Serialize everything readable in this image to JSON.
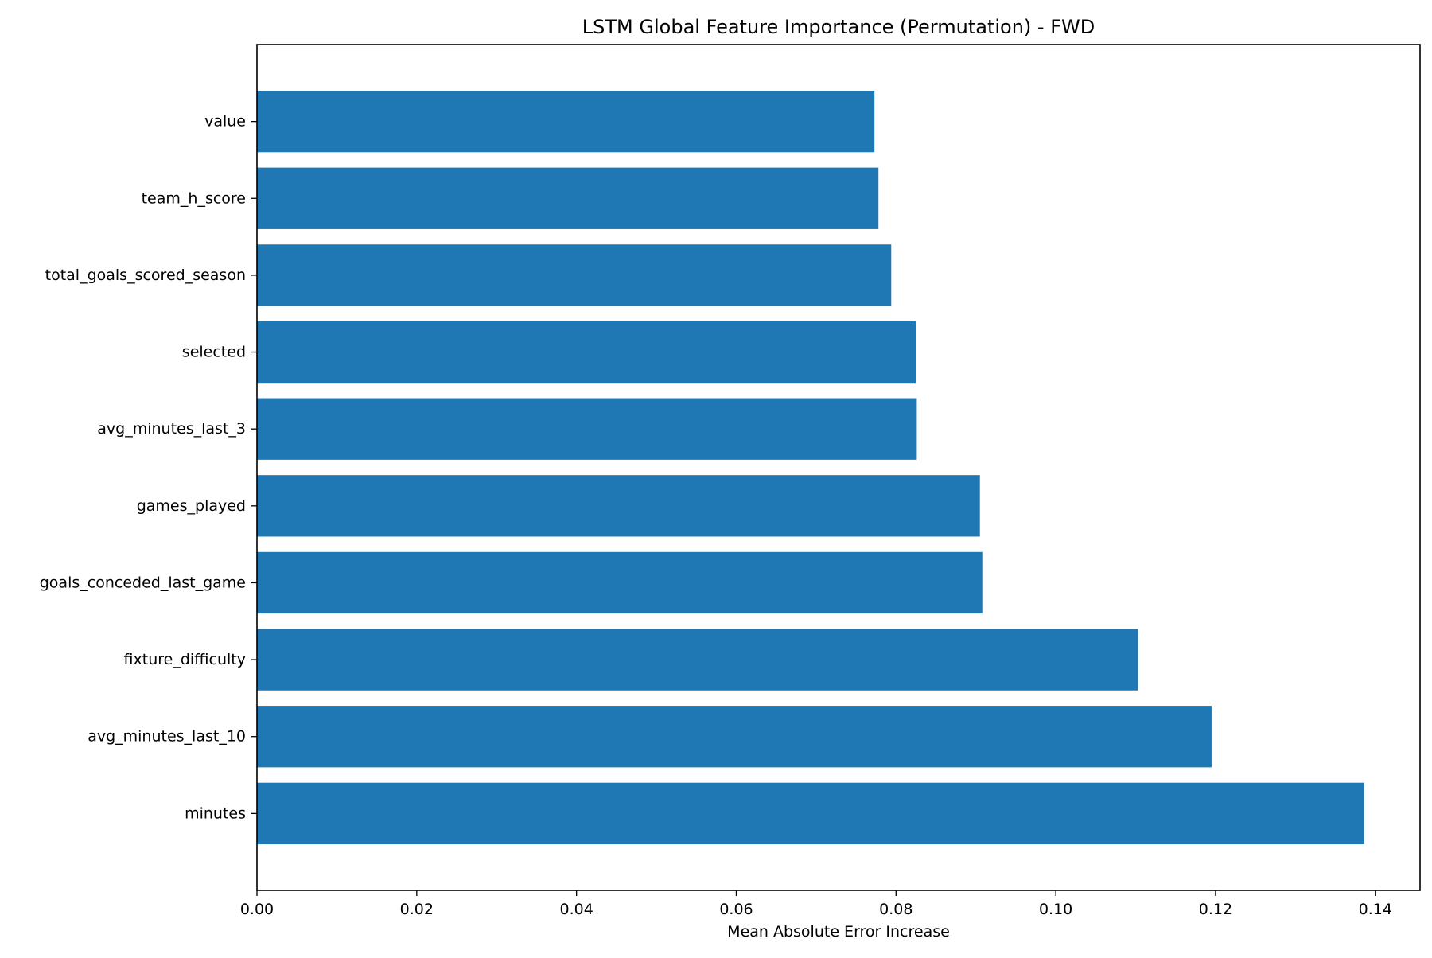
{
  "chart_data": {
    "type": "bar",
    "orientation": "horizontal",
    "title": "LSTM Global Feature Importance (Permutation) - FWD",
    "xlabel": "Mean Absolute Error Increase",
    "ylabel": "",
    "categories": [
      "minutes",
      "avg_minutes_last_10",
      "fixture_difficulty",
      "goals_conceded_last_game",
      "games_played",
      "avg_minutes_last_3",
      "selected",
      "total_goals_scored_season",
      "team_h_score",
      "value"
    ],
    "values": [
      0.1386,
      0.1195,
      0.1103,
      0.0908,
      0.0905,
      0.0826,
      0.0825,
      0.0794,
      0.0778,
      0.0773
    ],
    "xlim": [
      0,
      0.1456
    ],
    "xticks": [
      0,
      0.02,
      0.04,
      0.06,
      0.08,
      0.1,
      0.12,
      0.14
    ],
    "xtick_labels": [
      "0.00",
      "0.02",
      "0.04",
      "0.06",
      "0.08",
      "0.10",
      "0.12",
      "0.14"
    ],
    "grid": false,
    "legend": "none",
    "bar_color": "#1f77b4"
  }
}
